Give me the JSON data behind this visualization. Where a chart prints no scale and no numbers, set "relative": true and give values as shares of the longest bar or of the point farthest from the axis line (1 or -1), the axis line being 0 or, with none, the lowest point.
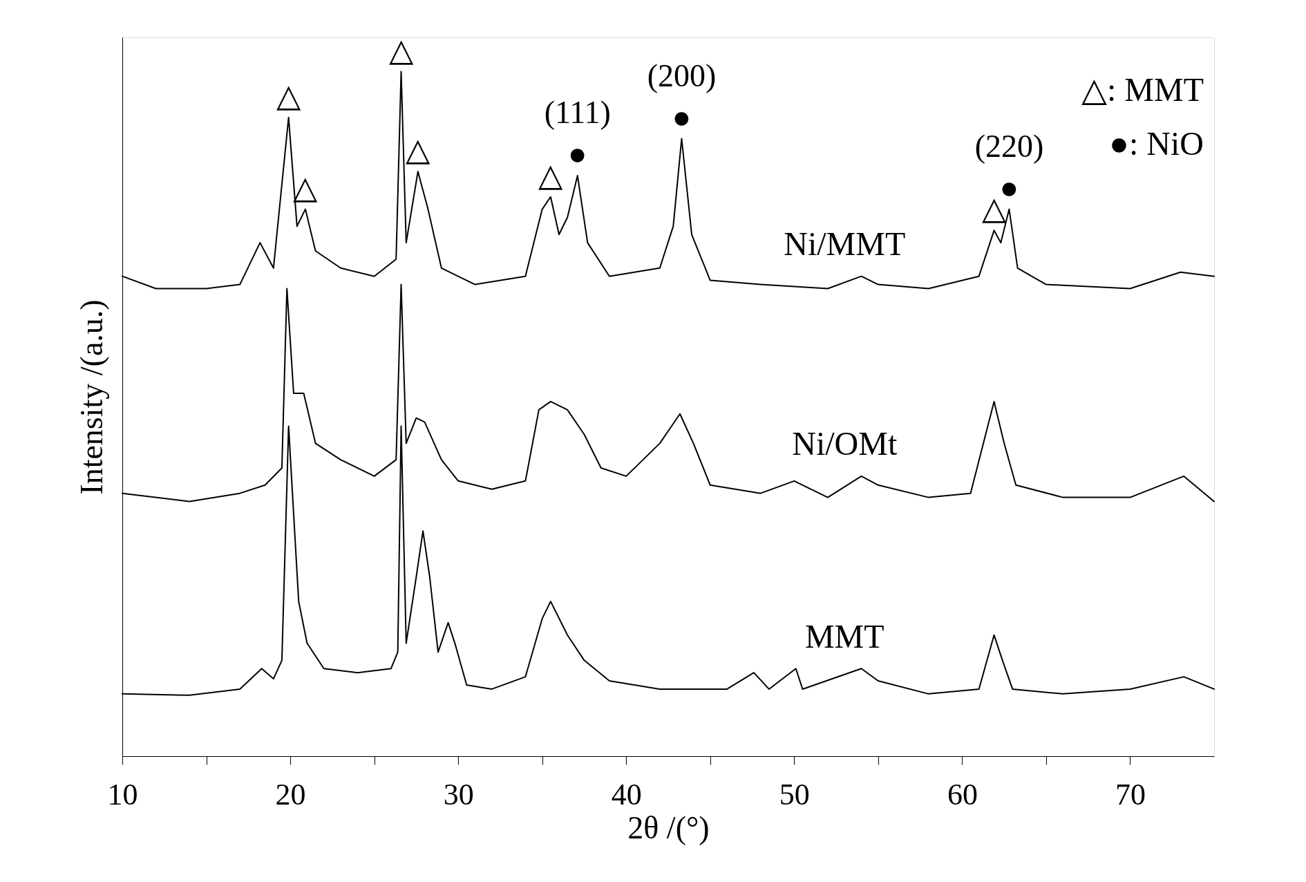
{
  "chart_data": {
    "type": "line",
    "relative": true,
    "xlabel": "2θ /(°)",
    "ylabel": "Intensity /(a.u.)",
    "xlim": [
      10,
      75
    ],
    "xticks": [
      10,
      {
        "value": 15,
        "label": null
      },
      20,
      {
        "value": 25,
        "label": null
      },
      30,
      {
        "value": 35,
        "label": null
      },
      40,
      {
        "value": 45,
        "label": null
      },
      50,
      {
        "value": 55,
        "label": null
      },
      60,
      {
        "value": 65,
        "label": null
      },
      70
    ],
    "grid": false,
    "marker": "none",
    "line_style": "solid",
    "series": [
      {
        "name": "Ni/MMT",
        "color": "#000000",
        "x": [
          10,
          12,
          15,
          17,
          18.2,
          19,
          19.9,
          20.4,
          20.9,
          21.5,
          23,
          25,
          26.3,
          26.6,
          26.9,
          27.6,
          28.2,
          29,
          31,
          34,
          35,
          35.5,
          36,
          36.5,
          37.1,
          37.7,
          39,
          42,
          42.8,
          43.3,
          43.9,
          45,
          48,
          52,
          54,
          55,
          58,
          61,
          61.9,
          62.3,
          62.8,
          63.3,
          65,
          70,
          73,
          75
        ],
        "values": [
          0.701,
          0.683,
          0.683,
          0.689,
          0.75,
          0.713,
          0.933,
          0.774,
          0.799,
          0.738,
          0.713,
          0.701,
          0.726,
          1,
          0.75,
          0.854,
          0.799,
          0.713,
          0.689,
          0.701,
          0.799,
          0.817,
          0.762,
          0.787,
          0.848,
          0.75,
          0.701,
          0.713,
          0.774,
          0.902,
          0.762,
          0.695,
          0.689,
          0.683,
          0.701,
          0.689,
          0.683,
          0.701,
          0.768,
          0.75,
          0.799,
          0.713,
          0.689,
          0.683,
          0.707,
          0.701
        ]
      },
      {
        "name": "Ni/OMt",
        "color": "#000000",
        "x": [
          10,
          14,
          17,
          18.5,
          19.5,
          19.8,
          20.2,
          20.8,
          21.5,
          23,
          25,
          26.3,
          26.6,
          26.9,
          27.5,
          28,
          29,
          30,
          32,
          34,
          34.8,
          35.5,
          36.5,
          37.5,
          38.5,
          40,
          42,
          43.2,
          44,
          45,
          48,
          50,
          52,
          54,
          55,
          58,
          60.5,
          61.9,
          62.5,
          63.2,
          66,
          70,
          73.2,
          75
        ],
        "values": [
          0.384,
          0.372,
          0.384,
          0.396,
          0.421,
          0.683,
          0.53,
          0.53,
          0.457,
          0.433,
          0.409,
          0.433,
          0.689,
          0.457,
          0.494,
          0.488,
          0.433,
          0.402,
          0.39,
          0.402,
          0.506,
          0.518,
          0.506,
          0.47,
          0.421,
          0.409,
          0.457,
          0.5,
          0.457,
          0.396,
          0.384,
          0.402,
          0.378,
          0.409,
          0.396,
          0.378,
          0.384,
          0.518,
          0.457,
          0.396,
          0.378,
          0.378,
          0.409,
          0.372
        ]
      },
      {
        "name": "MMT",
        "color": "#000000",
        "x": [
          10,
          14,
          17,
          18.3,
          19,
          19.5,
          19.9,
          20.5,
          21,
          22,
          24,
          26,
          26.4,
          26.6,
          26.9,
          27.5,
          27.9,
          28.3,
          28.8,
          29.4,
          29.8,
          30.5,
          32,
          34,
          35,
          35.5,
          36.5,
          37.5,
          39,
          42,
          46,
          47.6,
          48.5,
          50.1,
          50.5,
          54,
          55,
          58,
          61,
          61.9,
          62.4,
          63,
          66,
          70,
          73.2,
          75
        ],
        "values": [
          0.091,
          0.089,
          0.098,
          0.128,
          0.113,
          0.14,
          0.482,
          0.226,
          0.165,
          0.128,
          0.122,
          0.128,
          0.152,
          0.482,
          0.165,
          0.262,
          0.329,
          0.262,
          0.152,
          0.195,
          0.165,
          0.104,
          0.098,
          0.116,
          0.201,
          0.226,
          0.177,
          0.14,
          0.11,
          0.098,
          0.098,
          0.122,
          0.098,
          0.128,
          0.098,
          0.128,
          0.11,
          0.091,
          0.098,
          0.177,
          0.14,
          0.098,
          0.091,
          0.098,
          0.116,
          0.098
        ]
      }
    ],
    "annotations": [
      {
        "text": "△",
        "x": 19.9,
        "y": 0.933
      },
      {
        "text": "△",
        "x": 20.9,
        "y": 0.799
      },
      {
        "text": "△",
        "x": 26.6,
        "y": 1
      },
      {
        "text": "△",
        "x": 27.6,
        "y": 0.854
      },
      {
        "text": "△",
        "x": 35.5,
        "y": 0.817
      },
      {
        "text": "△",
        "x": 61.9,
        "y": 0.768
      },
      {
        "text": "●",
        "x": 37.1,
        "y": 0.848
      },
      {
        "text": "●",
        "x": 43.3,
        "y": 0.902
      },
      {
        "text": "●",
        "x": 62.8,
        "y": 0.799
      },
      {
        "text": "(111)",
        "x": 37.1,
        "y": 0.848
      },
      {
        "text": "(200)",
        "x": 43.3,
        "y": 0.902
      },
      {
        "text": "(220)",
        "x": 62.8,
        "y": 0.799
      },
      "△: MMT",
      "●: NiO"
    ]
  }
}
